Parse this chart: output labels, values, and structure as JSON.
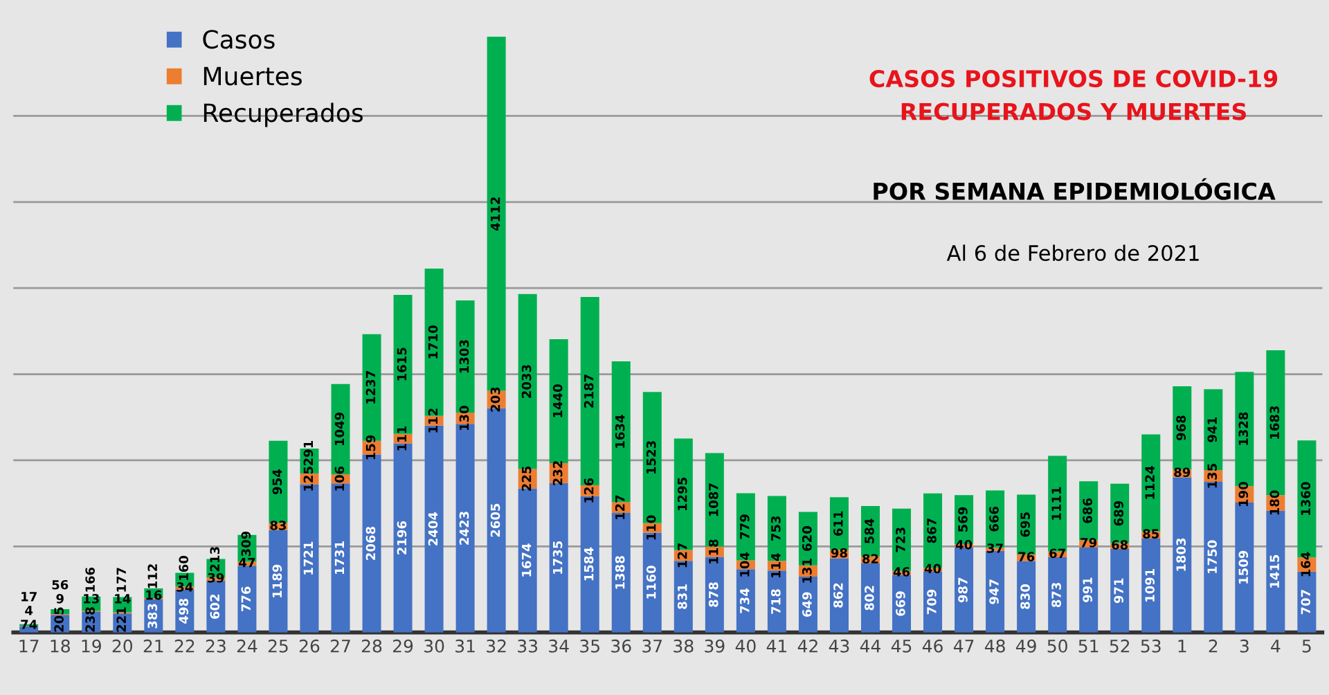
{
  "chart_data": {
    "type": "bar",
    "stacked": true,
    "title": "CASOS POSITIVOS DE COVID-19\nRECUPERADOS Y MUERTES",
    "subtitle": "POR SEMANA EPIDEMIOLÓGICA",
    "annotations": [
      "Al 6 de Febrero de 2021"
    ],
    "categories": [
      "17",
      "18",
      "19",
      "20",
      "21",
      "22",
      "23",
      "24",
      "25",
      "26",
      "27",
      "28",
      "29",
      "30",
      "31",
      "32",
      "33",
      "34",
      "35",
      "36",
      "37",
      "38",
      "39",
      "40",
      "41",
      "42",
      "43",
      "44",
      "45",
      "46",
      "47",
      "48",
      "49",
      "50",
      "51",
      "52",
      "53",
      "1",
      "2",
      "3",
      "4",
      "5"
    ],
    "series": [
      {
        "name": "Casos",
        "color": "#4472c4",
        "values": [
          74,
          205,
          238,
          221,
          383,
          498,
          602,
          776,
          1189,
          1721,
          1731,
          2068,
          2196,
          2404,
          2423,
          2605,
          1674,
          1735,
          1584,
          1388,
          1160,
          831,
          878,
          734,
          718,
          649,
          862,
          802,
          669,
          709,
          987,
          947,
          830,
          873,
          991,
          971,
          1091,
          1803,
          1750,
          1509,
          1415,
          707
        ]
      },
      {
        "name": "Muertes",
        "color": "#ed7d31",
        "values": [
          4,
          9,
          13,
          14,
          16,
          34,
          39,
          47,
          83,
          125,
          106,
          159,
          111,
          112,
          130,
          203,
          225,
          232,
          126,
          127,
          110,
          127,
          118,
          104,
          114,
          131,
          98,
          82,
          46,
          40,
          40,
          37,
          76,
          67,
          79,
          68,
          85,
          89,
          135,
          190,
          180,
          164
        ]
      },
      {
        "name": "Recuperados",
        "color": "#00b050",
        "values": [
          17,
          56,
          166,
          177,
          112,
          160,
          213,
          309,
          954,
          291,
          1049,
          1237,
          1615,
          1710,
          1303,
          4112,
          2033,
          1440,
          2187,
          1634,
          1523,
          1295,
          1087,
          779,
          753,
          620,
          611,
          584,
          723,
          867,
          569,
          666,
          695,
          1111,
          686,
          689,
          1124,
          968,
          941,
          1328,
          1683,
          1360
        ]
      }
    ],
    "yticks": [
      {
        "value": 0,
        "label": null
      },
      {
        "value": 1000,
        "label": null
      },
      {
        "value": 2000,
        "label": null
      },
      {
        "value": 3000,
        "label": null
      },
      {
        "value": 4000,
        "label": null
      },
      {
        "value": 5000,
        "label": null
      },
      {
        "value": 6000,
        "label": null
      }
    ],
    "tick_labels": "x",
    "grid": "y",
    "legend": "top left",
    "data_labels": true
  }
}
